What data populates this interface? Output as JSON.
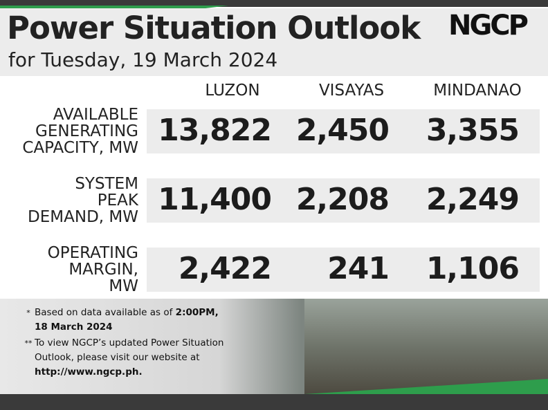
{
  "header": {
    "title": "Power Situation Outlook",
    "subtitle": "for Tuesday, 19 March 2024",
    "logo": "NGCP"
  },
  "table": {
    "columns": [
      "LUZON",
      "VISAYAS",
      "MINDANAO"
    ],
    "rows": [
      {
        "label": [
          "AVAILABLE",
          "GENERATING",
          "CAPACITY, MW"
        ],
        "values": [
          "13,822",
          "2,450",
          "3,355"
        ]
      },
      {
        "label": [
          "SYSTEM",
          "PEAK",
          "DEMAND, MW"
        ],
        "values": [
          "11,400",
          "2,208",
          "2,249"
        ]
      },
      {
        "label": [
          "OPERATING",
          "MARGIN,",
          "MW"
        ],
        "values": [
          "2,422",
          "241",
          "1,106"
        ]
      }
    ]
  },
  "notes": [
    {
      "marker": "*",
      "lines": [
        [
          "Based on data available as of ",
          "2:00PM,"
        ],
        [
          "18 March 2024"
        ]
      ]
    },
    {
      "marker": "**",
      "lines": [
        [
          "To view NGCP’s updated Power Situation"
        ],
        [
          "Outlook, please visit our website at"
        ],
        [
          "http://www.ngcp.ph."
        ]
      ]
    }
  ]
}
